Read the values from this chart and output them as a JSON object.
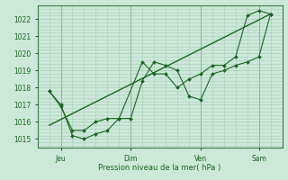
{
  "bg_color": "#cce8d8",
  "grid_color": "#aaccbb",
  "line_color": "#1a6620",
  "marker_color": "#1a6620",
  "xlabel": "Pression niveau de la mer( hPa )",
  "ylim": [
    1014.5,
    1022.8
  ],
  "yticks": [
    1015,
    1016,
    1017,
    1018,
    1019,
    1020,
    1021,
    1022
  ],
  "x_tick_labels": [
    "Jeu",
    "Dim",
    "Ven",
    "Sam"
  ],
  "x_tick_positions": [
    1,
    4,
    7,
    9.5
  ],
  "x_vlines": [
    1,
    4,
    7,
    9.5
  ],
  "xlim": [
    0,
    10.5
  ],
  "series1_x": [
    0.5,
    1.0,
    1.5,
    2.0,
    2.5,
    3.0,
    3.5,
    4.0,
    4.5,
    5.0,
    5.5,
    6.0,
    6.5,
    7.0,
    7.5,
    8.0,
    8.5,
    9.0,
    9.5,
    10.0
  ],
  "series1_y": [
    1017.8,
    1017.0,
    1015.2,
    1015.0,
    1015.3,
    1015.5,
    1016.2,
    1016.2,
    1018.4,
    1019.5,
    1019.3,
    1019.0,
    1017.5,
    1017.3,
    1018.8,
    1019.0,
    1019.3,
    1019.5,
    1019.8,
    1022.3
  ],
  "series2_x": [
    0.5,
    1.0,
    1.5,
    2.0,
    2.5,
    3.0,
    3.5,
    4.5,
    5.0,
    5.5,
    6.0,
    6.5,
    7.0,
    7.5,
    8.0,
    8.5,
    9.0,
    9.5,
    10.0
  ],
  "series2_y": [
    1017.8,
    1016.9,
    1015.5,
    1015.5,
    1016.0,
    1016.2,
    1016.2,
    1019.5,
    1018.8,
    1018.8,
    1018.0,
    1018.5,
    1018.8,
    1019.3,
    1019.3,
    1019.8,
    1022.2,
    1022.5,
    1022.3
  ],
  "trend_x": [
    0.5,
    10.0
  ],
  "trend_y": [
    1015.8,
    1022.3
  ]
}
